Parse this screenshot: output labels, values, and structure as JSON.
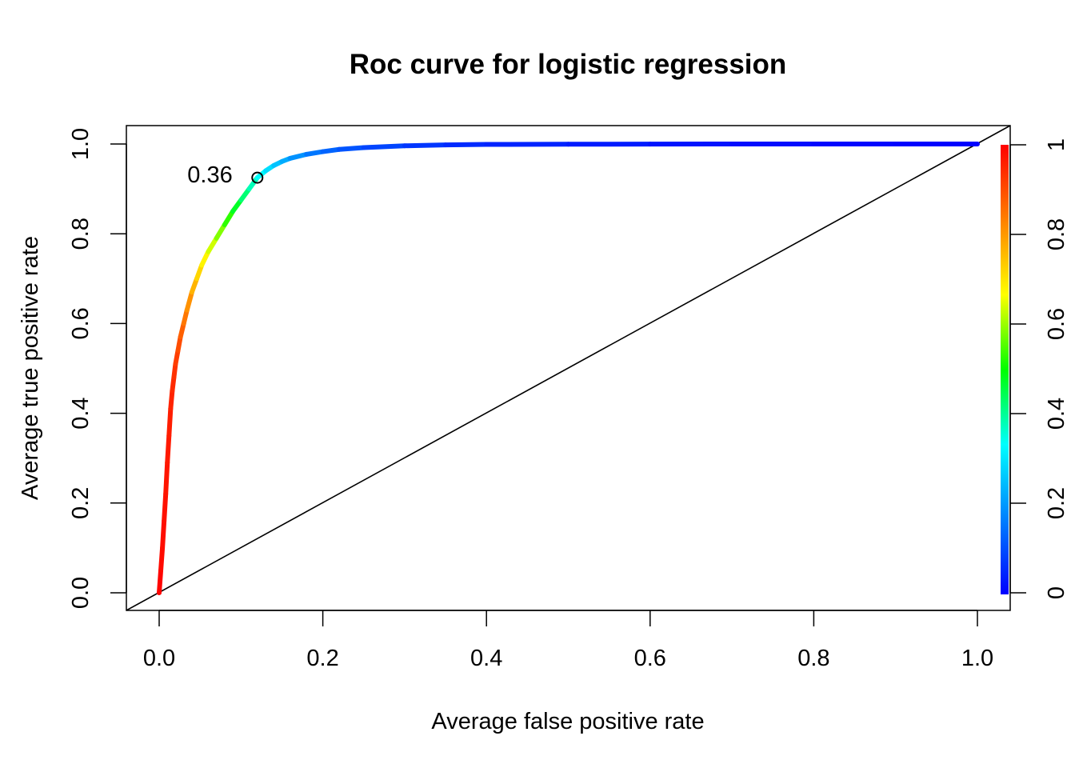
{
  "chart_data": {
    "type": "line",
    "title": "Roc curve for logistic regression",
    "xlabel": "Average false positive rate",
    "ylabel": "Average true positive rate",
    "xlim": [
      0,
      1
    ],
    "ylim": [
      0,
      1
    ],
    "x_ticks": [
      "0.0",
      "0.2",
      "0.4",
      "0.6",
      "0.8",
      "1.0"
    ],
    "y_ticks": [
      "0.0",
      "0.2",
      "0.4",
      "0.6",
      "0.8",
      "1.0"
    ],
    "grid": false,
    "series": [
      {
        "x": [
          0.0,
          0.002,
          0.004,
          0.006,
          0.008,
          0.01,
          0.012,
          0.014,
          0.016,
          0.018,
          0.02,
          0.023,
          0.026,
          0.03,
          0.034,
          0.04,
          0.046,
          0.052,
          0.06,
          0.07,
          0.08,
          0.09,
          0.1,
          0.11,
          0.12,
          0.13,
          0.14,
          0.15,
          0.16,
          0.18,
          0.2,
          0.22,
          0.25,
          0.3,
          0.35,
          0.4,
          0.5,
          0.6,
          0.7,
          0.8,
          0.9,
          1.0
        ],
        "y": [
          0.0,
          0.05,
          0.1,
          0.16,
          0.22,
          0.29,
          0.35,
          0.41,
          0.45,
          0.48,
          0.51,
          0.54,
          0.57,
          0.6,
          0.63,
          0.67,
          0.7,
          0.73,
          0.76,
          0.79,
          0.82,
          0.85,
          0.875,
          0.9,
          0.925,
          0.94,
          0.952,
          0.961,
          0.968,
          0.977,
          0.983,
          0.988,
          0.992,
          0.996,
          0.998,
          0.999,
          0.9995,
          0.9998,
          1.0,
          1.0,
          1.0,
          1.0
        ],
        "cutoff": [
          1.0,
          0.99,
          0.985,
          0.98,
          0.975,
          0.97,
          0.965,
          0.96,
          0.95,
          0.94,
          0.93,
          0.91,
          0.89,
          0.86,
          0.83,
          0.79,
          0.74,
          0.7,
          0.66,
          0.61,
          0.56,
          0.5,
          0.45,
          0.4,
          0.36,
          0.31,
          0.27,
          0.24,
          0.21,
          0.17,
          0.14,
          0.12,
          0.1,
          0.08,
          0.06,
          0.05,
          0.04,
          0.03,
          0.02,
          0.01,
          0.005,
          0.0
        ]
      }
    ],
    "diagonal_reference": true,
    "annotation": {
      "label": "0.36",
      "x": 0.12,
      "y": 0.925
    },
    "colorbar": {
      "ticks": [
        "0",
        "0.2",
        "0.4",
        "0.6",
        "0.8",
        "1"
      ],
      "colors": [
        "#0000ff",
        "#0080ff",
        "#00ffff",
        "#00ff00",
        "#ffff00",
        "#ff8000",
        "#ff0000"
      ]
    }
  }
}
